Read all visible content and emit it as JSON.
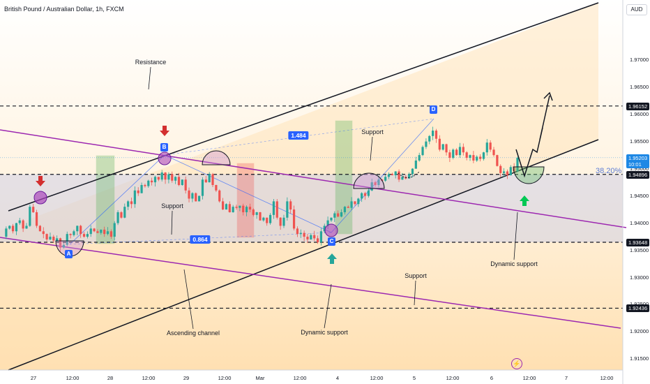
{
  "header": {
    "title": "British Pound / Australian Dollar, 1h, FXCM",
    "currency": "AUD"
  },
  "fib_label": "38.20%",
  "brand_icon": "lightning-bolt-logo-icon",
  "colors": {
    "up": "#26a69a",
    "down": "#ef5350",
    "channel": "#131722",
    "trend": "#9c27b0",
    "fill": "#ffe0b2",
    "band": "#c5cae9",
    "buy_zone": "#4caf50",
    "sell_zone": "#ef5350",
    "labels": "#2962ff"
  },
  "chart_data": {
    "type": "candlestick",
    "symbol": "GBPAUD",
    "interval": "1h",
    "y_axis": {
      "ticks": [
        "1.97000",
        "1.96500",
        "1.96000",
        "1.95500",
        "1.95000",
        "1.94500",
        "1.94000",
        "1.93500",
        "1.93000",
        "1.92500",
        "1.92000",
        "1.91500"
      ],
      "range": [
        1.913,
        1.981
      ]
    },
    "price_tags": [
      {
        "label": "1.96152",
        "value": 1.96152
      },
      {
        "label": "1.95203",
        "value": 1.95203,
        "current": true,
        "extra": "10:01"
      },
      {
        "label": "1.94896",
        "value": 1.94896
      },
      {
        "label": "1.93648",
        "value": 1.93648
      },
      {
        "label": "1.92436",
        "value": 1.92436
      }
    ],
    "x_axis": {
      "ticks": [
        "27",
        "12:00",
        "28",
        "12:00",
        "29",
        "12:00",
        "Mar",
        "12:00",
        "4",
        "12:00",
        "5",
        "12:00",
        "6",
        "12:00",
        "7",
        "12:00"
      ]
    },
    "levels": [
      {
        "name": "Resistance",
        "value": 1.96152
      },
      {
        "name": "Support",
        "value": 1.94896
      },
      {
        "name": "Support",
        "value": 1.93648
      },
      {
        "name": "Support",
        "value": 1.92436
      }
    ],
    "pattern_points": [
      {
        "label": "A",
        "value": 1.9353
      },
      {
        "label": "B",
        "value": 1.9493
      },
      {
        "label": "C",
        "value": 1.9365
      },
      {
        "label": "D",
        "value": 1.957
      }
    ],
    "ratios": [
      "0.864",
      "1.484"
    ],
    "annotations": [
      "Resistance",
      "Support",
      "Support",
      "Support",
      "Ascending channel",
      "Dynamic support",
      "Dynamic support"
    ],
    "ohlc_path": [
      1.9375,
      1.939,
      1.9395,
      1.9385,
      1.94,
      1.9405,
      1.939,
      1.9395,
      1.943,
      1.942,
      1.9395,
      1.9385,
      1.938,
      1.937,
      1.9375,
      1.9368,
      1.9372,
      1.9355,
      1.936,
      1.938,
      1.9378,
      1.9385,
      1.9395,
      1.938,
      1.9375,
      1.938,
      1.939,
      1.9385,
      1.9382,
      1.9388,
      1.938,
      1.9385,
      1.9375,
      1.94,
      1.942,
      1.941,
      1.943,
      1.944,
      1.9435,
      1.946,
      1.9455,
      1.947,
      1.9468,
      1.9478,
      1.9475,
      1.9485,
      1.948,
      1.9493,
      1.948,
      1.949,
      1.9478,
      1.9485,
      1.947,
      1.948,
      1.946,
      1.9445,
      1.9455,
      1.944,
      1.945,
      1.948,
      1.9475,
      1.949,
      1.947,
      1.946,
      1.944,
      1.9425,
      1.9435,
      1.942,
      1.943,
      1.9428,
      1.9432,
      1.942,
      1.943,
      1.9425,
      1.9415,
      1.942,
      1.9405,
      1.941,
      1.94,
      1.9415,
      1.944,
      1.941,
      1.9395,
      1.941,
      1.944,
      1.9425,
      1.939,
      1.938,
      1.9382,
      1.9375,
      1.937,
      1.9378,
      1.9372,
      1.9365,
      1.9385,
      1.9395,
      1.9405,
      1.941,
      1.9418,
      1.9412,
      1.942,
      1.943,
      1.9428,
      1.944,
      1.9435,
      1.9445,
      1.9455,
      1.945,
      1.946,
      1.9475,
      1.947,
      1.948,
      1.9478,
      1.9485,
      1.949,
      1.9488,
      1.9495,
      1.948,
      1.9485,
      1.9482,
      1.949,
      1.95,
      1.9515,
      1.9525,
      1.954,
      1.955,
      1.956,
      1.957,
      1.9555,
      1.9535,
      1.9545,
      1.953,
      1.952,
      1.9535,
      1.9525,
      1.954,
      1.953,
      1.952,
      1.9525,
      1.9515,
      1.9522,
      1.9518,
      1.953,
      1.9548,
      1.9535,
      1.9525,
      1.9505,
      1.9492,
      1.9495,
      1.9488,
      1.9503,
      1.9495,
      1.952
    ]
  }
}
